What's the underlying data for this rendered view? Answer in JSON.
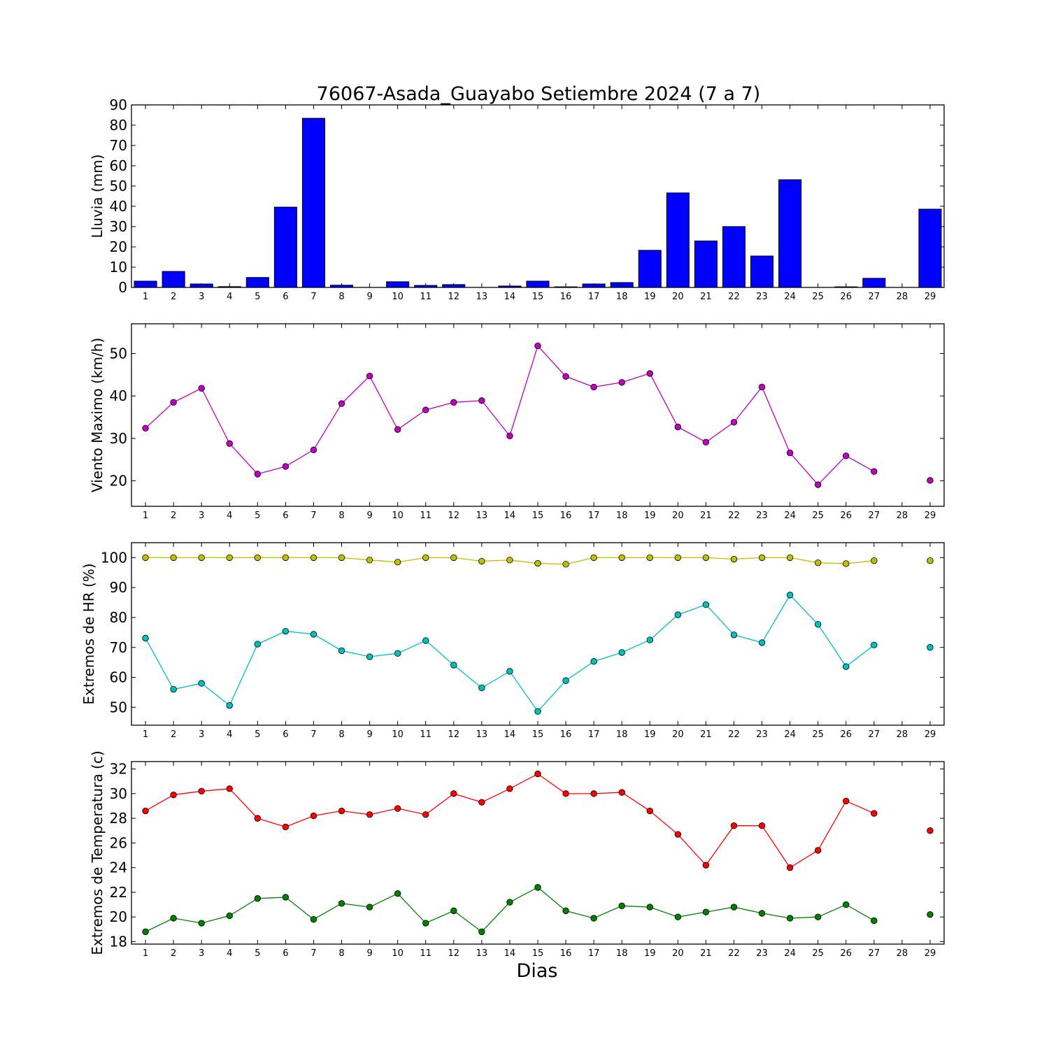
{
  "figure": {
    "title": "76067-Asada_Guayabo Setiembre 2024  (7 a 7)",
    "xlabel": "Dias"
  },
  "chart_data": [
    {
      "type": "bar",
      "ylabel": "Lluvia (mm)",
      "ylim": [
        0,
        90
      ],
      "yticks": [
        0,
        10,
        20,
        30,
        40,
        50,
        60,
        70,
        80,
        90
      ],
      "categories": [
        "1",
        "2",
        "3",
        "4",
        "5",
        "6",
        "7",
        "8",
        "9",
        "10",
        "11",
        "12",
        "13",
        "14",
        "15",
        "16",
        "17",
        "18",
        "19",
        "20",
        "21",
        "22",
        "23",
        "24",
        "25",
        "26",
        "27",
        "28",
        "29"
      ],
      "series": [
        {
          "color": "#0000ff",
          "values": [
            3.1,
            7.9,
            1.7,
            0.4,
            4.9,
            39.6,
            83.4,
            1.1,
            0.0,
            2.8,
            1.0,
            1.4,
            0.0,
            0.7,
            3.1,
            0.3,
            1.7,
            2.4,
            18.3,
            46.6,
            22.9,
            30.0,
            15.5,
            53.1,
            0.0,
            0.3,
            4.5,
            null,
            38.6
          ]
        }
      ],
      "grid": false
    },
    {
      "type": "line",
      "ylabel": "Viento Maximo (km/h)",
      "ylim": [
        14,
        57
      ],
      "yticks": [
        20,
        30,
        40,
        50
      ],
      "categories": [
        "1",
        "2",
        "3",
        "4",
        "5",
        "6",
        "7",
        "8",
        "9",
        "10",
        "11",
        "12",
        "13",
        "14",
        "15",
        "16",
        "17",
        "18",
        "19",
        "20",
        "21",
        "22",
        "23",
        "24",
        "25",
        "26",
        "27",
        "28",
        "29"
      ],
      "series": [
        {
          "color": "#bf00bf",
          "values": [
            32.4,
            38.5,
            41.8,
            28.8,
            21.6,
            23.4,
            27.3,
            38.2,
            44.7,
            32.1,
            36.7,
            38.5,
            38.9,
            30.6,
            51.8,
            44.6,
            42.1,
            43.2,
            45.3,
            32.7,
            29.1,
            33.8,
            42.1,
            26.6,
            19.1,
            25.9,
            22.2,
            null,
            20.1
          ]
        }
      ],
      "grid": false
    },
    {
      "type": "line",
      "ylabel": "Extremos de HR (%)",
      "ylim": [
        44,
        105
      ],
      "yticks": [
        50,
        60,
        70,
        80,
        90,
        100
      ],
      "categories": [
        "1",
        "2",
        "3",
        "4",
        "5",
        "6",
        "7",
        "8",
        "9",
        "10",
        "11",
        "12",
        "13",
        "14",
        "15",
        "16",
        "17",
        "18",
        "19",
        "20",
        "21",
        "22",
        "23",
        "24",
        "25",
        "26",
        "27",
        "28",
        "29"
      ],
      "series": [
        {
          "color": "#bfbf00",
          "values": [
            100,
            100,
            100,
            100,
            100,
            100,
            100,
            100,
            99.2,
            98.5,
            100,
            100,
            98.8,
            99.2,
            98.1,
            97.8,
            100,
            100,
            100,
            100,
            100,
            99.5,
            100,
            100,
            98.3,
            98.0,
            99.0,
            null,
            99.0
          ]
        },
        {
          "color": "#00bfbf",
          "values": [
            73.1,
            56.0,
            58.0,
            50.6,
            71.1,
            75.4,
            74.4,
            68.9,
            66.9,
            68.0,
            72.3,
            64.1,
            56.5,
            62.0,
            48.6,
            58.9,
            65.3,
            68.3,
            72.5,
            80.9,
            84.3,
            74.2,
            71.6,
            87.5,
            77.7,
            63.6,
            70.8,
            null,
            70.0
          ]
        }
      ],
      "grid": false
    },
    {
      "type": "line",
      "ylabel": "Extremos de Temperatura (c)",
      "ylim": [
        17.8,
        32.6
      ],
      "yticks": [
        18,
        20,
        22,
        24,
        26,
        28,
        30,
        32
      ],
      "categories": [
        "1",
        "2",
        "3",
        "4",
        "5",
        "6",
        "7",
        "8",
        "9",
        "10",
        "11",
        "12",
        "13",
        "14",
        "15",
        "16",
        "17",
        "18",
        "19",
        "20",
        "21",
        "22",
        "23",
        "24",
        "25",
        "26",
        "27",
        "28",
        "29"
      ],
      "series": [
        {
          "color": "#ff0000",
          "values": [
            28.6,
            29.9,
            30.2,
            30.4,
            28.0,
            27.3,
            28.2,
            28.6,
            28.3,
            28.8,
            28.3,
            30.0,
            29.3,
            30.4,
            31.6,
            30.0,
            30.0,
            30.1,
            28.6,
            26.7,
            24.2,
            27.4,
            27.4,
            24.0,
            25.4,
            29.4,
            28.4,
            null,
            27.0
          ]
        },
        {
          "color": "#008000",
          "values": [
            18.8,
            19.9,
            19.5,
            20.1,
            21.5,
            21.6,
            19.8,
            21.1,
            20.8,
            21.9,
            19.5,
            20.5,
            18.8,
            21.2,
            22.4,
            20.5,
            19.9,
            20.9,
            20.8,
            20.0,
            20.4,
            20.8,
            20.3,
            19.9,
            20.0,
            21.0,
            19.7,
            null,
            20.2
          ]
        }
      ],
      "grid": false
    }
  ]
}
